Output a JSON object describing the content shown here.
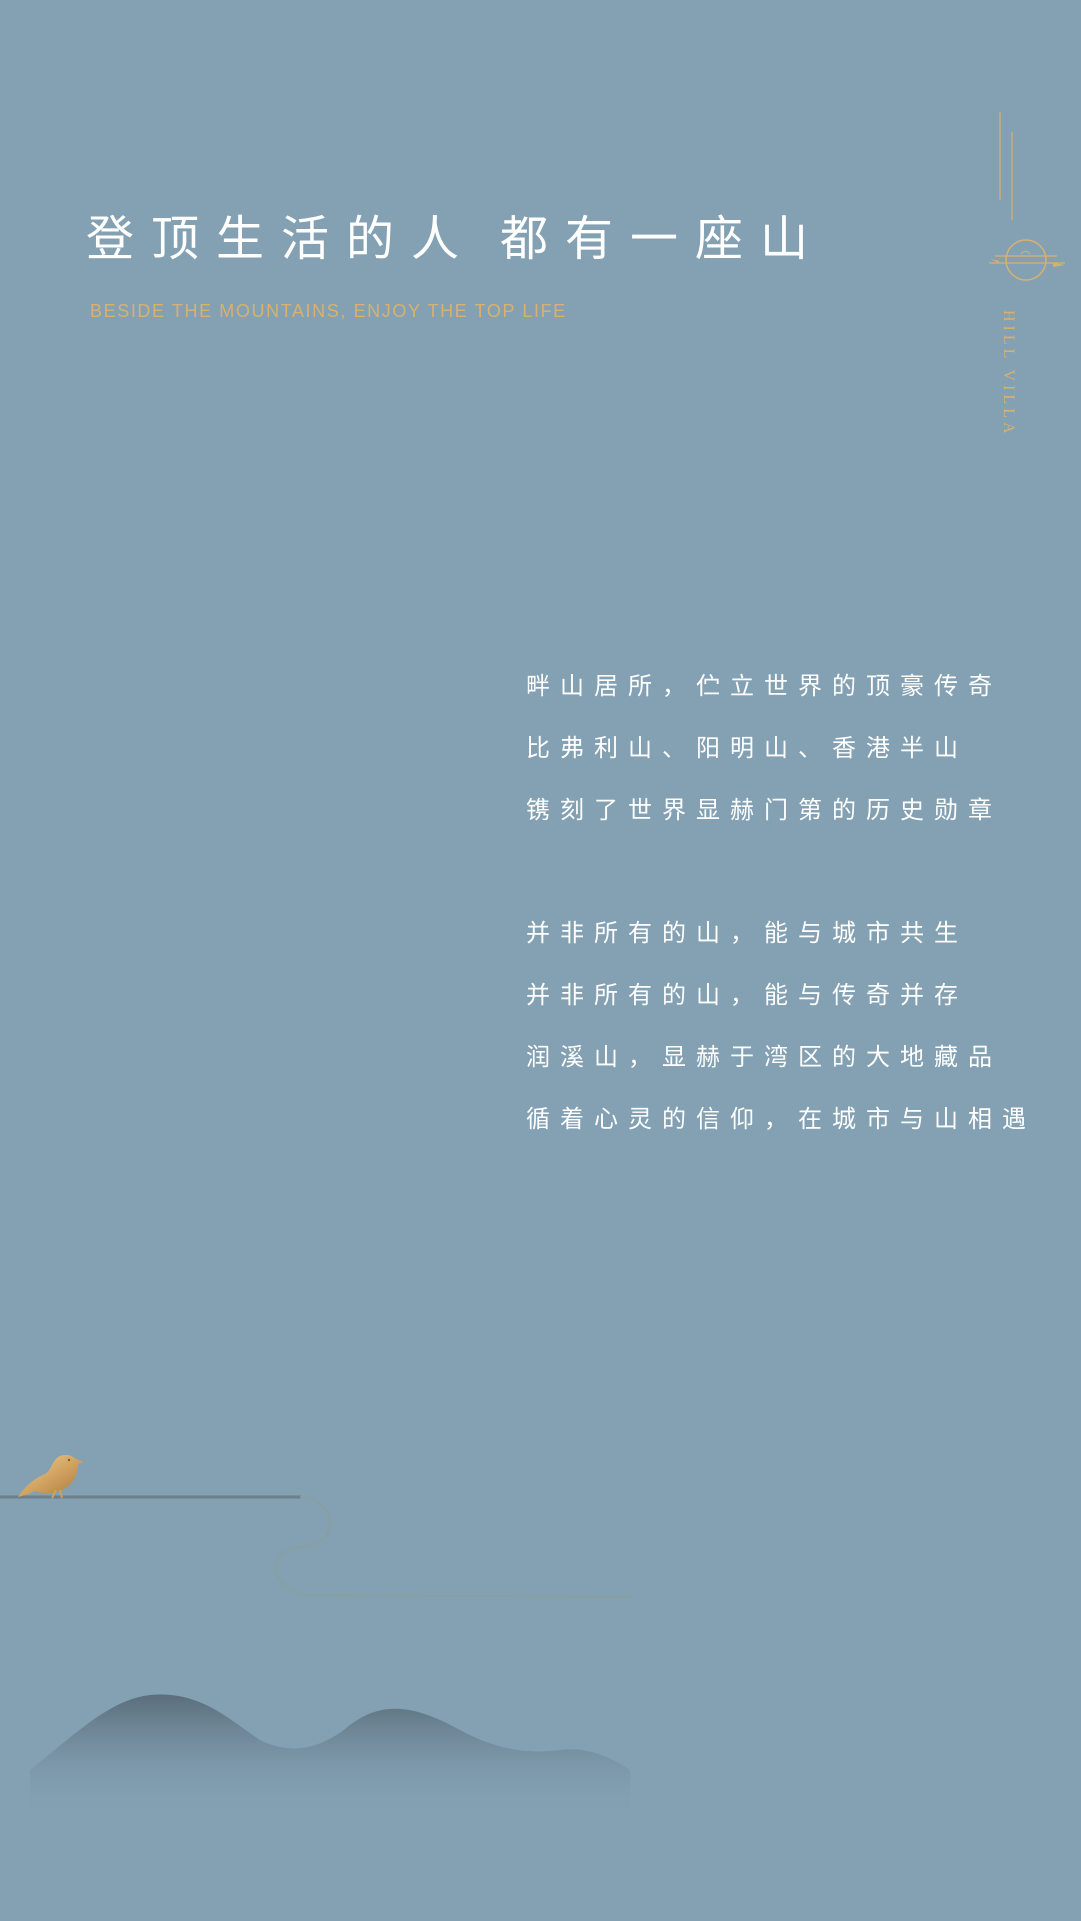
{
  "header": {
    "title_part1": "登顶生活的人",
    "title_part2": "都有一座山",
    "subtitle": "BESIDE THE MOUNTAINS, ENJOY THE TOP LIFE"
  },
  "brand": {
    "text": "HILL VILLA",
    "icon": "sun-icon",
    "page_current": "03",
    "page_total": "04"
  },
  "poem": {
    "stanza1": [
      "畔山居所，伫立世界的顶豪传奇",
      "比弗利山、阳明山、香港半山",
      "镌刻了世界显赫门第的历史勋章"
    ],
    "stanza2": [
      "并非所有的山，能与城市共生",
      "并非所有的山，能与传奇并存",
      "润溪山，显赫于湾区的大地藏品",
      "循着心灵的信仰，在城市与山相遇"
    ]
  },
  "colors": {
    "background": "#83a1b3",
    "accent": "#d9b16f",
    "text": "#ffffff"
  },
  "decor": {
    "bird_icon": "bird-icon",
    "mountain_icon": "mountain-silhouette"
  }
}
